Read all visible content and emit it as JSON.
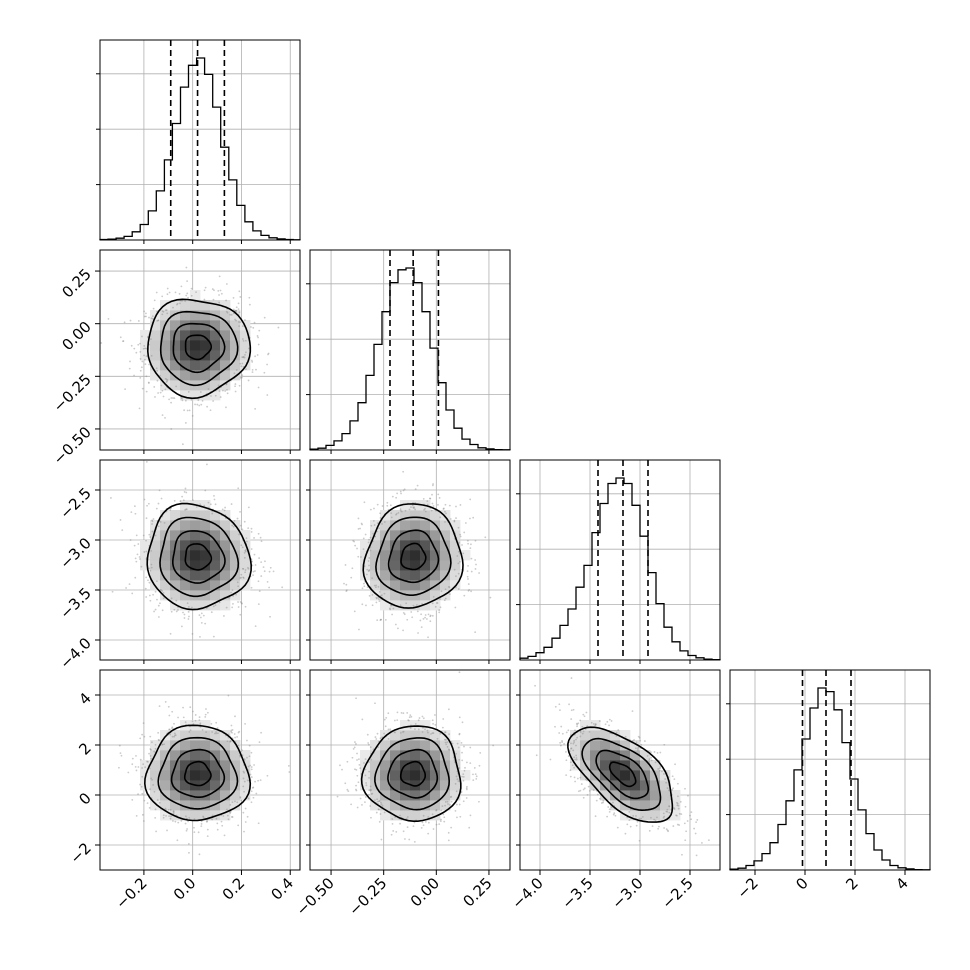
{
  "chart_data": {
    "type": "corner",
    "dimensions": 4,
    "parameters": [
      {
        "index": 0,
        "range": [
          -0.38,
          0.44
        ],
        "ticks": [
          -0.2,
          0.0,
          0.2,
          0.4
        ],
        "tick_labels": [
          "−0.2",
          "0.0",
          "0.2",
          "0.4"
        ],
        "mean": 0.02,
        "sd": 0.105,
        "quantiles": [
          -0.09,
          0.02,
          0.13
        ]
      },
      {
        "index": 1,
        "range": [
          -0.6,
          0.35
        ],
        "ticks": [
          -0.5,
          -0.25,
          0.0,
          0.25
        ],
        "tick_labels": [
          "−0.50",
          "−0.25",
          "0.00",
          "0.25"
        ],
        "mean": -0.11,
        "sd": 0.115,
        "quantiles": [
          -0.22,
          -0.11,
          0.01
        ]
      },
      {
        "index": 2,
        "range": [
          -4.2,
          -2.2
        ],
        "ticks": [
          -4.0,
          -3.5,
          -3.0,
          -2.5
        ],
        "tick_labels": [
          "−4.0",
          "−3.5",
          "−3.0",
          "−2.5"
        ],
        "mean": -3.17,
        "sd": 0.26,
        "quantiles": [
          -3.42,
          -3.17,
          -2.92
        ]
      },
      {
        "index": 3,
        "range": [
          -3.0,
          5.0
        ],
        "ticks": [
          -2,
          0,
          2,
          4
        ],
        "tick_labels": [
          "−2",
          "0",
          "2",
          "4"
        ],
        "mean": 0.84,
        "sd": 0.95,
        "quantiles": [
          -0.1,
          0.84,
          1.84
        ]
      }
    ],
    "histogram_labels": {
      "show_y_tick_labels": false
    },
    "histograms": [
      {
        "param": 0,
        "bin_edges": [
          -0.38,
          -0.347,
          -0.314,
          -0.281,
          -0.248,
          -0.215,
          -0.182,
          -0.149,
          -0.116,
          -0.083,
          -0.05,
          -0.017,
          0.016,
          0.049,
          0.082,
          0.115,
          0.148,
          0.181,
          0.214,
          0.247,
          0.28,
          0.313,
          0.346,
          0.379,
          0.412,
          0.44
        ],
        "counts": [
          0.003,
          0.005,
          0.01,
          0.02,
          0.045,
          0.085,
          0.16,
          0.27,
          0.44,
          0.64,
          0.84,
          0.96,
          1.0,
          0.91,
          0.73,
          0.51,
          0.33,
          0.19,
          0.1,
          0.05,
          0.025,
          0.012,
          0.006,
          0.003,
          0.001
        ]
      },
      {
        "param": 1,
        "bin_edges": [
          -0.6,
          -0.562,
          -0.524,
          -0.486,
          -0.448,
          -0.41,
          -0.372,
          -0.334,
          -0.296,
          -0.258,
          -0.22,
          -0.182,
          -0.144,
          -0.106,
          -0.068,
          -0.03,
          0.008,
          0.046,
          0.084,
          0.122,
          0.16,
          0.198,
          0.236,
          0.274,
          0.312,
          0.35
        ],
        "counts": [
          0.005,
          0.01,
          0.025,
          0.05,
          0.09,
          0.16,
          0.26,
          0.41,
          0.58,
          0.76,
          0.92,
          0.99,
          1.0,
          0.92,
          0.76,
          0.56,
          0.37,
          0.22,
          0.12,
          0.06,
          0.03,
          0.012,
          0.006,
          0.002,
          0.001
        ]
      },
      {
        "param": 2,
        "bin_edges": [
          -4.2,
          -4.12,
          -4.04,
          -3.96,
          -3.88,
          -3.8,
          -3.72,
          -3.64,
          -3.56,
          -3.48,
          -3.4,
          -3.32,
          -3.24,
          -3.16,
          -3.08,
          -3.0,
          -2.92,
          -2.84,
          -2.76,
          -2.68,
          -2.6,
          -2.52,
          -2.44,
          -2.36,
          -2.28,
          -2.2
        ],
        "counts": [
          0.01,
          0.02,
          0.04,
          0.07,
          0.12,
          0.19,
          0.28,
          0.4,
          0.52,
          0.7,
          0.86,
          0.97,
          1.0,
          0.97,
          0.85,
          0.68,
          0.48,
          0.31,
          0.18,
          0.1,
          0.05,
          0.025,
          0.012,
          0.005,
          0.002
        ]
      },
      {
        "param": 3,
        "bin_edges": [
          -3.0,
          -2.68,
          -2.36,
          -2.04,
          -1.72,
          -1.4,
          -1.08,
          -0.76,
          -0.44,
          -0.12,
          0.2,
          0.52,
          0.84,
          1.16,
          1.48,
          1.8,
          2.12,
          2.44,
          2.76,
          3.08,
          3.4,
          3.72,
          4.04,
          4.36,
          4.68,
          5.0
        ],
        "counts": [
          0.005,
          0.01,
          0.025,
          0.05,
          0.09,
          0.15,
          0.25,
          0.38,
          0.55,
          0.72,
          0.89,
          1.0,
          0.98,
          0.88,
          0.7,
          0.5,
          0.33,
          0.2,
          0.11,
          0.055,
          0.025,
          0.012,
          0.006,
          0.002,
          0.001
        ]
      }
    ],
    "pairs": [
      {
        "x": 0,
        "y": 1,
        "correlation": 0.0
      },
      {
        "x": 0,
        "y": 2,
        "correlation": -0.05
      },
      {
        "x": 1,
        "y": 2,
        "correlation": 0.05
      },
      {
        "x": 0,
        "y": 3,
        "correlation": 0.0
      },
      {
        "x": 1,
        "y": 3,
        "correlation": 0.0
      },
      {
        "x": 2,
        "y": 3,
        "correlation": -0.6
      }
    ],
    "contour_levels_sigma": [
      0.5,
      1.0,
      1.5,
      2.0
    ],
    "grid": true,
    "colors": {
      "line": "#000000",
      "grid": "#b0b0b0",
      "scatter": "#8c8c8c",
      "density": "#000000"
    },
    "title": "",
    "axis_labels": []
  }
}
